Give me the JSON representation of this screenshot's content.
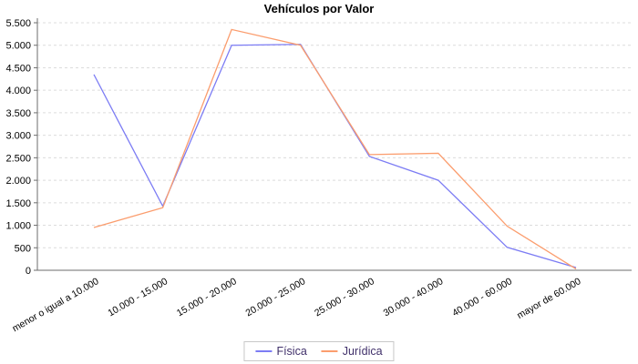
{
  "chart_data": {
    "type": "line",
    "title": "Vehículos por Valor",
    "categories": [
      "menor o igual a 10.000",
      "10.000 - 15.000",
      "15.000 - 20.000",
      "20.000 - 25.000",
      "25.000 - 30.000",
      "30.000 - 40.000",
      "40.000 - 60.000",
      "mayor de 60.000"
    ],
    "series": [
      {
        "name": "Física",
        "color": "#7c7cf4",
        "values": [
          4350,
          1425,
          5000,
          5020,
          2530,
          2000,
          510,
          60
        ]
      },
      {
        "name": "Jurídica",
        "color": "#fb9d6e",
        "values": [
          950,
          1390,
          5350,
          5000,
          2570,
          2600,
          980,
          30
        ]
      }
    ],
    "ylim": [
      0,
      5500
    ],
    "ytick_step": 500,
    "ytick_labels": [
      "0",
      "500",
      "1.000",
      "1.500",
      "2.000",
      "2.500",
      "3.000",
      "3.500",
      "4.000",
      "4.500",
      "5.000",
      "5.500"
    ],
    "grid": true,
    "legend_position": "bottom",
    "colors": {
      "grid": "#dcdcdc",
      "axis": "#6e6e6e",
      "tick_text": "#000000",
      "legend_text": "#40306a",
      "background": "#ffffff"
    }
  }
}
